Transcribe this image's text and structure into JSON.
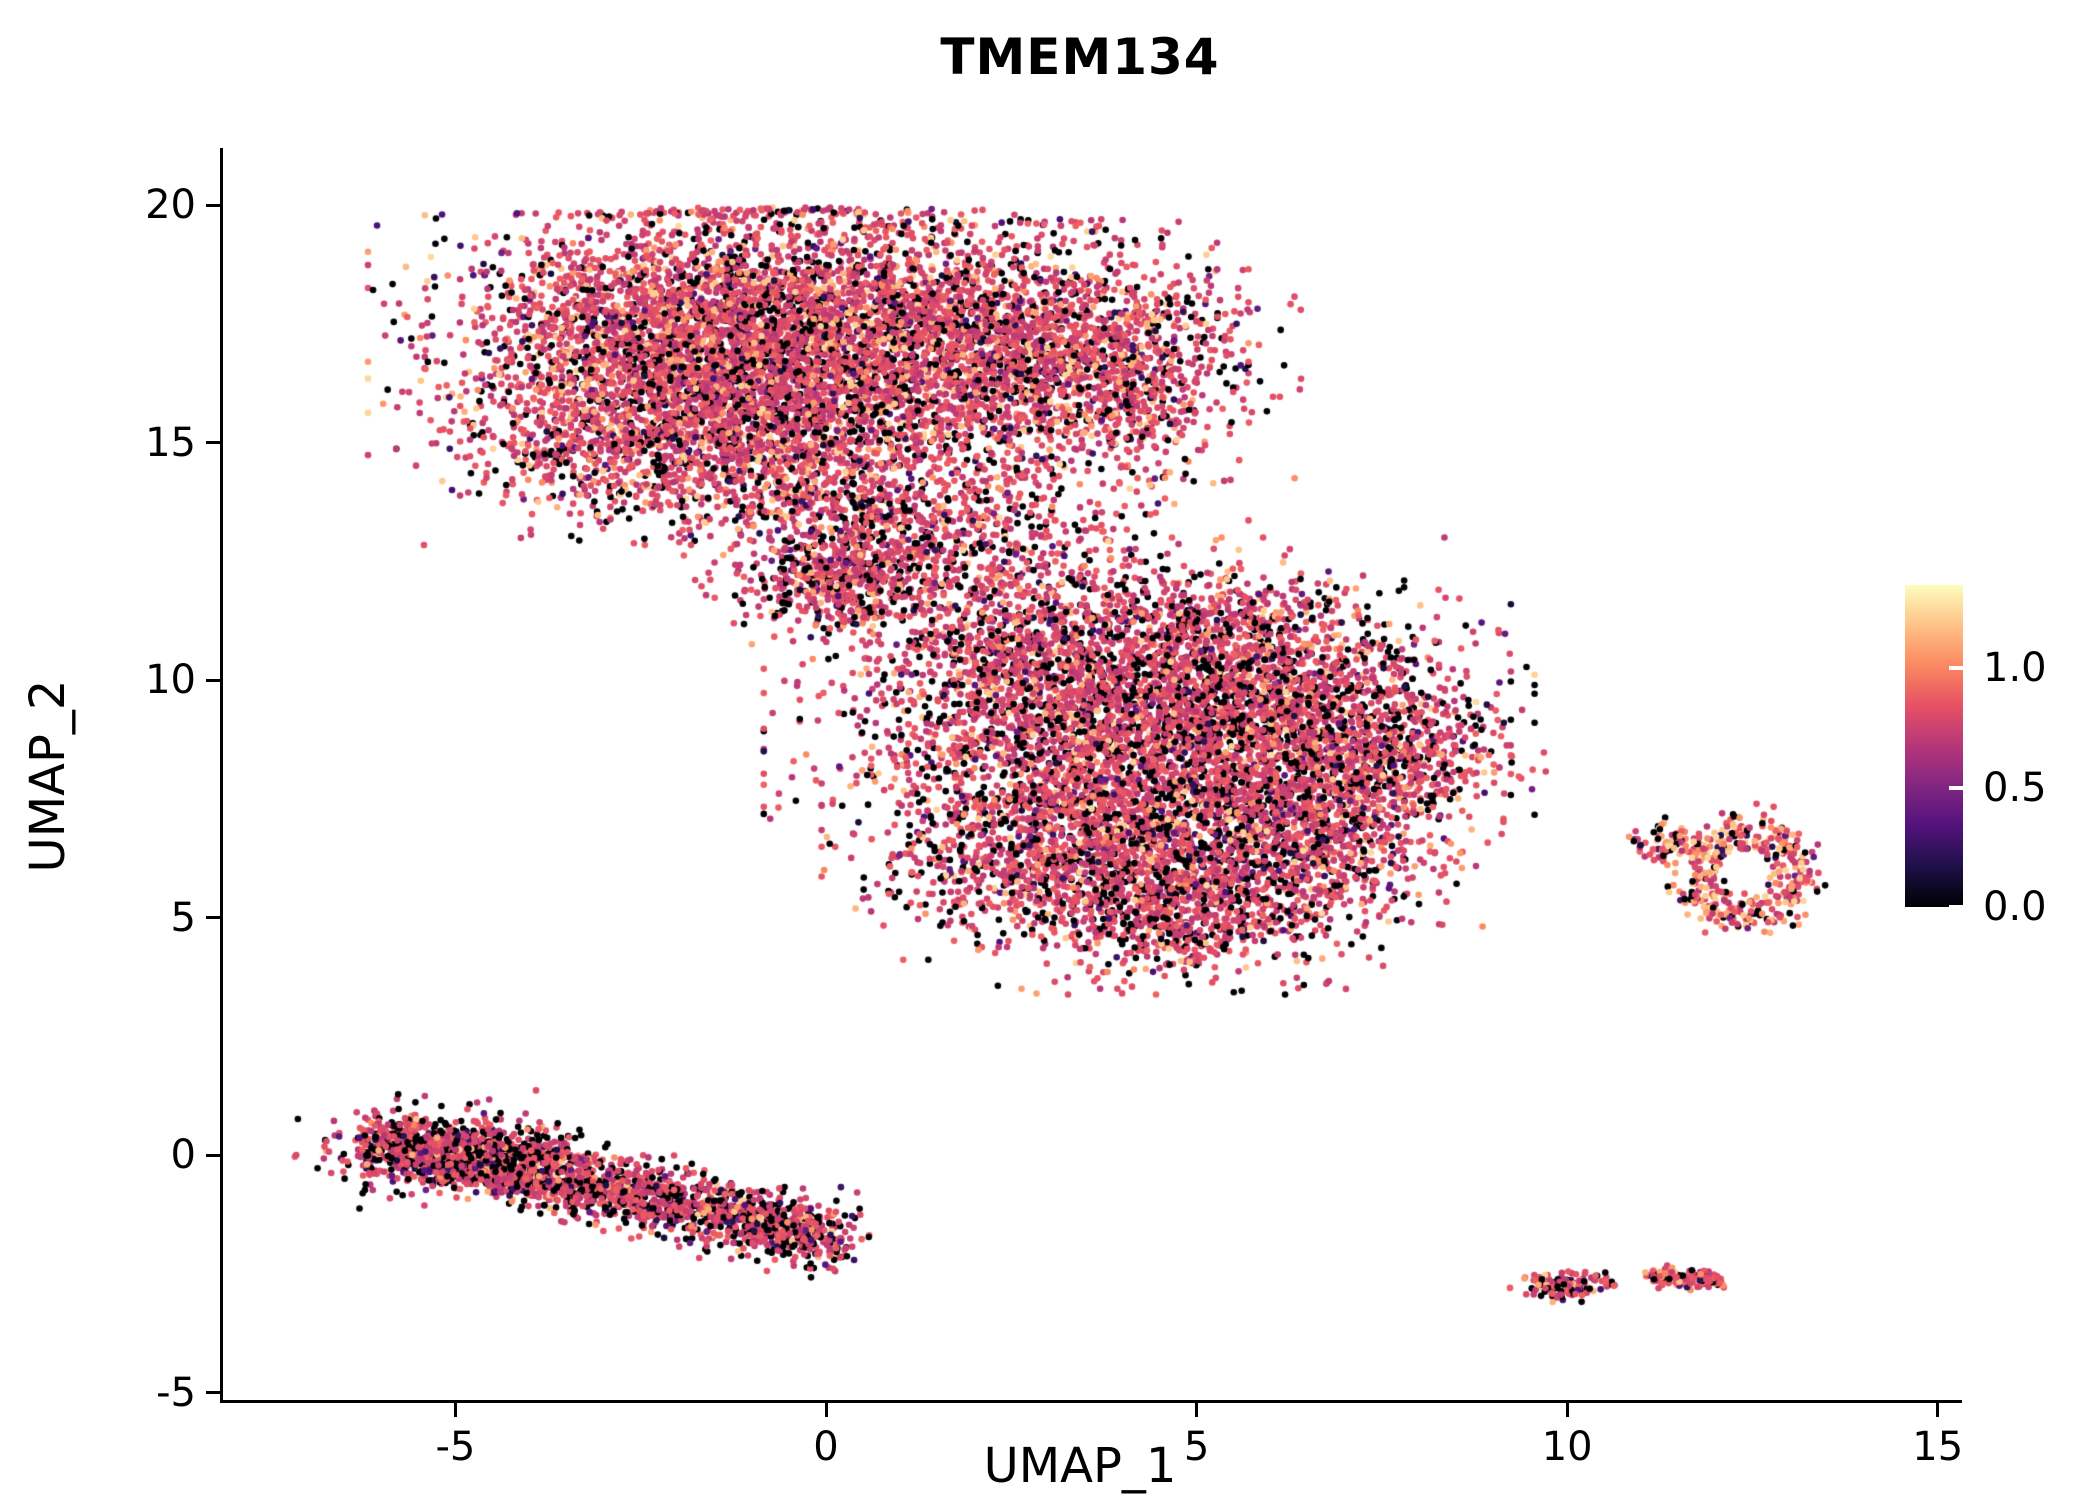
{
  "title": "TMEM134",
  "chart_data": {
    "type": "scatter",
    "title": "TMEM134",
    "xlabel": "UMAP_1",
    "ylabel": "UMAP_2",
    "xlim": [
      -8.15,
      15.3
    ],
    "ylim": [
      -5.2,
      21.2
    ],
    "x_ticks": [
      -5,
      0,
      5,
      10,
      15
    ],
    "x_tick_labels": [
      "-5",
      "0",
      "5",
      "10",
      "15"
    ],
    "y_ticks": [
      -5,
      0,
      5,
      10,
      15,
      20
    ],
    "y_tick_labels": [
      "-5",
      "0",
      "5",
      "10",
      "15",
      "20"
    ],
    "grid": false,
    "point_radius_px": 3.3,
    "colorbar": {
      "position": "right",
      "vmin": 0,
      "vmax": 1.35,
      "tick_values": [
        1.0,
        0.5,
        0.0
      ],
      "tick_labels": [
        "1.0",
        "0.5",
        "0.0"
      ],
      "colormap": "magma",
      "stops": [
        "#000004",
        "#1d1147",
        "#51127c",
        "#822681",
        "#b63679",
        "#e65164",
        "#fb8861",
        "#fec287",
        "#fcfdbf"
      ]
    },
    "clusters": [
      {
        "name": "top-left",
        "shape": "gauss",
        "cx": -2.4,
        "cy": 16.9,
        "sx": 1.35,
        "sy": 1.45,
        "n": 2400,
        "ymax": 19.9,
        "expr": {
          "p_zero": 0.16,
          "p_dark": 0.05,
          "p_high": 0.14
        }
      },
      {
        "name": "top-mid",
        "shape": "gauss",
        "cx": -0.2,
        "cy": 17.2,
        "sx": 1.3,
        "sy": 1.35,
        "n": 2300,
        "ymax": 19.95,
        "expr": {
          "p_zero": 0.16,
          "p_dark": 0.05,
          "p_high": 0.14
        }
      },
      {
        "name": "top-right",
        "shape": "gauss",
        "cx": 2.2,
        "cy": 17.0,
        "sx": 1.25,
        "sy": 1.3,
        "n": 1700,
        "ymax": 19.7,
        "expr": {
          "p_zero": 0.18,
          "p_dark": 0.05,
          "p_high": 0.12
        }
      },
      {
        "name": "top-far-right",
        "shape": "gauss",
        "cx": 3.9,
        "cy": 16.6,
        "sx": 0.9,
        "sy": 1.1,
        "n": 800,
        "expr": {
          "p_zero": 0.18,
          "p_dark": 0.05,
          "p_high": 0.12
        }
      },
      {
        "name": "top-lower-band",
        "shape": "gauss",
        "cx": -1.6,
        "cy": 15.0,
        "sx": 1.5,
        "sy": 0.8,
        "n": 1000,
        "expr": {
          "p_zero": 0.18,
          "p_dark": 0.05,
          "p_high": 0.12
        }
      },
      {
        "name": "top-lower-lobe",
        "shape": "gauss",
        "cx": 0.4,
        "cy": 13.1,
        "sx": 0.85,
        "sy": 0.95,
        "n": 700,
        "expr": {
          "p_zero": 0.2,
          "p_dark": 0.05,
          "p_high": 0.1
        }
      },
      {
        "name": "top-lobe-tip",
        "shape": "gauss",
        "cx": 0.1,
        "cy": 11.9,
        "sx": 0.55,
        "sy": 0.45,
        "n": 280,
        "expr": {
          "p_zero": 0.2,
          "p_dark": 0.05,
          "p_high": 0.1
        }
      },
      {
        "name": "connector-upper",
        "shape": "gauss",
        "cx": 1.9,
        "cy": 12.9,
        "sx": 0.9,
        "sy": 1.0,
        "n": 300,
        "expr": {
          "p_zero": 0.22,
          "p_dark": 0.05,
          "p_high": 0.09
        }
      },
      {
        "name": "connector-right",
        "shape": "gauss",
        "cx": 3.1,
        "cy": 12.4,
        "sx": 0.9,
        "sy": 0.9,
        "n": 170,
        "expr": {
          "p_zero": 0.22,
          "p_dark": 0.05,
          "p_high": 0.09
        }
      },
      {
        "name": "mid-core",
        "shape": "gauss",
        "cx": 4.2,
        "cy": 8.8,
        "sx": 1.8,
        "sy": 1.5,
        "n": 3300,
        "expr": {
          "p_zero": 0.22,
          "p_dark": 0.05,
          "p_high": 0.1
        }
      },
      {
        "name": "mid-upper-right",
        "shape": "gauss",
        "cx": 6.2,
        "cy": 9.6,
        "sx": 1.2,
        "sy": 1.0,
        "n": 1100,
        "expr": {
          "p_zero": 0.22,
          "p_dark": 0.05,
          "p_high": 0.1
        }
      },
      {
        "name": "mid-lower-left",
        "shape": "gauss",
        "cx": 3.3,
        "cy": 6.3,
        "sx": 1.2,
        "sy": 1.0,
        "n": 1100,
        "expr": {
          "p_zero": 0.22,
          "p_dark": 0.05,
          "p_high": 0.1
        }
      },
      {
        "name": "mid-lower-right",
        "shape": "gauss",
        "cx": 5.5,
        "cy": 5.9,
        "sx": 1.3,
        "sy": 0.9,
        "n": 900,
        "expr": {
          "p_zero": 0.22,
          "p_dark": 0.05,
          "p_high": 0.1
        }
      },
      {
        "name": "mid-right-nub",
        "shape": "gauss",
        "cx": 7.9,
        "cy": 8.4,
        "sx": 0.65,
        "sy": 0.5,
        "n": 320,
        "expr": {
          "p_zero": 0.2,
          "p_dark": 0.05,
          "p_high": 0.12
        }
      },
      {
        "name": "mid-upper-left",
        "shape": "gauss",
        "cx": 2.6,
        "cy": 10.6,
        "sx": 0.8,
        "sy": 0.7,
        "n": 450,
        "expr": {
          "p_zero": 0.22,
          "p_dark": 0.05,
          "p_high": 0.1
        }
      },
      {
        "name": "mid-top",
        "shape": "gauss",
        "cx": 5.0,
        "cy": 11.2,
        "sx": 1.0,
        "sy": 0.6,
        "n": 350,
        "expr": {
          "p_zero": 0.24,
          "p_dark": 0.05,
          "p_high": 0.08
        }
      },
      {
        "name": "mid-right-lower",
        "shape": "gauss",
        "cx": 6.8,
        "cy": 7.2,
        "sx": 0.8,
        "sy": 0.8,
        "n": 500,
        "expr": {
          "p_zero": 0.22,
          "p_dark": 0.05,
          "p_high": 0.1
        }
      },
      {
        "name": "mid-bottom-tip",
        "shape": "gauss",
        "cx": 4.8,
        "cy": 4.8,
        "sx": 0.7,
        "sy": 0.5,
        "n": 250,
        "expr": {
          "p_zero": 0.24,
          "p_dark": 0.05,
          "p_high": 0.09
        }
      },
      {
        "name": "right-ring",
        "shape": "ring",
        "cx": 12.45,
        "cy": 5.9,
        "r": 0.8,
        "rsd": 0.18,
        "ax": 0.85,
        "ay": 1.15,
        "n": 380,
        "expr": {
          "p_zero": 0.12,
          "p_dark": 0.04,
          "p_high": 0.38
        }
      },
      {
        "name": "right-ring-satellite",
        "shape": "gauss",
        "cx": 11.35,
        "cy": 6.6,
        "sx": 0.22,
        "sy": 0.18,
        "n": 70,
        "expr": {
          "p_zero": 0.15,
          "p_dark": 0.05,
          "p_high": 0.3
        }
      },
      {
        "name": "bottom-left-band",
        "shape": "band",
        "x0": -6.15,
        "y0": 0.35,
        "x1": 0.2,
        "y1": -1.75,
        "jx": 0.22,
        "jy": 0.34,
        "n": 2100,
        "expr": {
          "p_zero": 0.3,
          "p_dark": 0.06,
          "p_high": 0.07
        }
      },
      {
        "name": "bottom-left-band-head",
        "shape": "gauss",
        "cx": -5.0,
        "cy": 0.1,
        "sx": 0.8,
        "sy": 0.45,
        "n": 500,
        "expr": {
          "p_zero": 0.3,
          "p_dark": 0.06,
          "p_high": 0.07
        }
      },
      {
        "name": "bottom-small-1",
        "shape": "gauss",
        "cx": 9.95,
        "cy": -2.75,
        "sx": 0.28,
        "sy": 0.14,
        "n": 130,
        "expr": {
          "p_zero": 0.25,
          "p_dark": 0.05,
          "p_high": 0.12
        }
      },
      {
        "name": "bottom-small-2",
        "shape": "band",
        "x0": 11.15,
        "y0": -2.55,
        "x1": 12.05,
        "y1": -2.65,
        "jx": 0.08,
        "jy": 0.09,
        "n": 150,
        "expr": {
          "p_zero": 0.25,
          "p_dark": 0.05,
          "p_high": 0.12
        }
      },
      {
        "name": "bottom-tiny",
        "shape": "gauss",
        "cx": 10.6,
        "cy": -2.72,
        "sx": 0.05,
        "sy": 0.04,
        "n": 7,
        "expr": {
          "p_zero": 0.3,
          "p_dark": 0.05,
          "p_high": 0.1
        }
      },
      {
        "name": "isolated-point",
        "shape": "gauss",
        "cx": 6.75,
        "cy": 3.62,
        "sx": 0.03,
        "sy": 0.03,
        "n": 2,
        "expr": {
          "p_zero": 0.0,
          "p_dark": 0.0,
          "p_high": 0.0
        }
      }
    ]
  }
}
